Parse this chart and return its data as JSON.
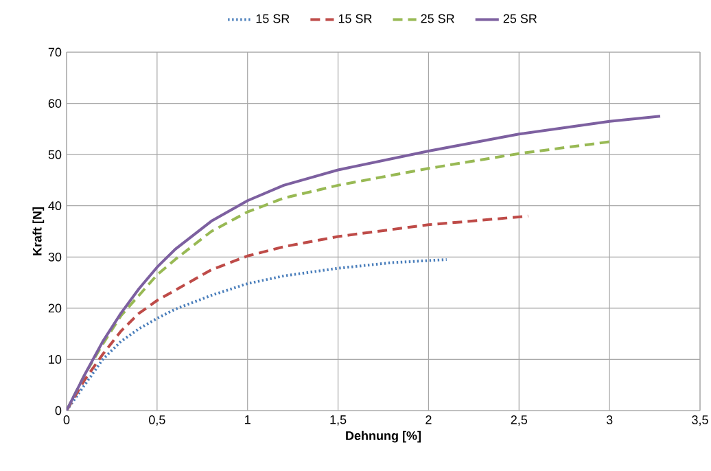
{
  "chart_data": {
    "type": "line",
    "xlabel": "Dehnung [%]",
    "ylabel": "Kraft [N]",
    "xlim": [
      0,
      3.5
    ],
    "ylim": [
      0,
      70
    ],
    "xticks": [
      0,
      {
        "value": 0.5,
        "label": "0,5"
      },
      1,
      {
        "value": 1.5,
        "label": "1,5"
      },
      2,
      {
        "value": 2.5,
        "label": "2,5"
      },
      3,
      {
        "value": 3.5,
        "label": "3,5"
      }
    ],
    "yticks": [
      0,
      10,
      20,
      30,
      40,
      50,
      60,
      70
    ],
    "grid": true,
    "legend": "top",
    "marker": "none",
    "series": [
      {
        "name": "15 SR",
        "color": "#4a7ebb",
        "line_style": "dotted",
        "x": [
          0,
          0.1,
          0.2,
          0.3,
          0.4,
          0.5,
          0.6,
          0.8,
          1.0,
          1.2,
          1.5,
          1.8,
          2.1
        ],
        "values": [
          0,
          5,
          10,
          13.5,
          16,
          18,
          19.8,
          22.5,
          24.8,
          26.3,
          27.8,
          28.9,
          29.5
        ]
      },
      {
        "name": "15 SR",
        "color": "#be4b48",
        "line_style": "dashed",
        "x": [
          0,
          0.1,
          0.2,
          0.3,
          0.4,
          0.5,
          0.6,
          0.8,
          1.0,
          1.2,
          1.5,
          2.0,
          2.3,
          2.55
        ],
        "values": [
          0,
          6,
          11,
          15.5,
          19,
          21.5,
          23.5,
          27.5,
          30.2,
          32,
          34,
          36.3,
          37.2,
          38
        ]
      },
      {
        "name": "25 SR",
        "color": "#98b954",
        "line_style": "dashed",
        "x": [
          0,
          0.1,
          0.2,
          0.3,
          0.4,
          0.5,
          0.6,
          0.8,
          1.0,
          1.2,
          1.5,
          2.0,
          2.5,
          3.0
        ],
        "values": [
          0,
          7,
          13,
          18.5,
          22.5,
          26.5,
          29.5,
          35,
          38.8,
          41.5,
          44,
          47.3,
          50.2,
          52.5
        ]
      },
      {
        "name": "25 SR",
        "color": "#7d60a0",
        "line_style": "solid",
        "x": [
          0,
          0.1,
          0.2,
          0.3,
          0.4,
          0.5,
          0.6,
          0.8,
          1.0,
          1.2,
          1.5,
          2.0,
          2.5,
          3.0,
          3.28
        ],
        "values": [
          0,
          7,
          13.5,
          19,
          23.8,
          28,
          31.5,
          37,
          41,
          44,
          47,
          50.7,
          54,
          56.5,
          57.5
        ]
      }
    ]
  }
}
